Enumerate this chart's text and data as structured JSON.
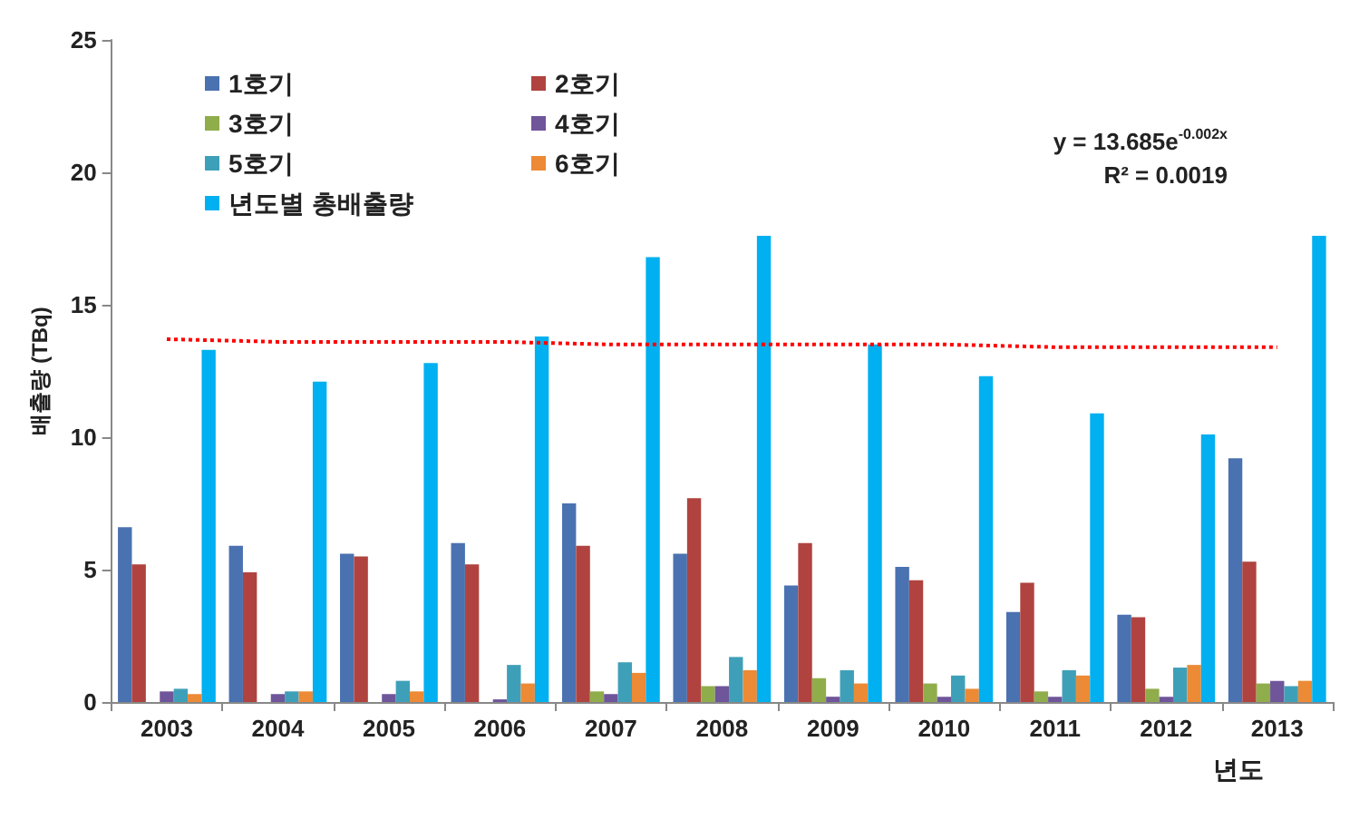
{
  "chart_data": {
    "type": "bar",
    "categories": [
      "2003",
      "2004",
      "2005",
      "2006",
      "2007",
      "2008",
      "2009",
      "2010",
      "2011",
      "2012",
      "2013"
    ],
    "xlabel": "년도",
    "ylabel": "배출량 (TBq)",
    "series": [
      {
        "name": "1호기",
        "color": "#4a72b0",
        "values": [
          6.6,
          5.9,
          5.6,
          6.0,
          7.5,
          5.6,
          4.4,
          5.1,
          3.4,
          3.3,
          9.2
        ]
      },
      {
        "name": "2호기",
        "color": "#b0433f",
        "values": [
          5.2,
          4.9,
          5.5,
          5.2,
          5.9,
          7.7,
          6.0,
          4.6,
          4.5,
          3.2,
          5.3
        ]
      },
      {
        "name": "3호기",
        "color": "#8fad4a",
        "values": [
          0,
          0,
          0,
          0,
          0.4,
          0.6,
          0.9,
          0.7,
          0.4,
          0.5,
          0.7
        ]
      },
      {
        "name": "4호기",
        "color": "#6f559a",
        "values": [
          0.4,
          0.3,
          0.3,
          0.1,
          0.3,
          0.6,
          0.2,
          0.2,
          0.2,
          0.2,
          0.8
        ]
      },
      {
        "name": "5호기",
        "color": "#3ea0b8",
        "values": [
          0.5,
          0.4,
          0.8,
          1.4,
          1.5,
          1.7,
          1.2,
          1.0,
          1.2,
          1.3,
          0.6
        ]
      },
      {
        "name": "6호기",
        "color": "#ec8a35",
        "values": [
          0.3,
          0.4,
          0.4,
          0.7,
          1.1,
          1.2,
          0.7,
          0.5,
          1.0,
          1.4,
          0.8
        ]
      },
      {
        "name": "년도별 총배출량",
        "color": "#00b0f0",
        "values": [
          13.3,
          12.1,
          12.8,
          13.8,
          16.8,
          17.6,
          13.5,
          12.3,
          10.9,
          10.1,
          17.6
        ]
      },
      {
        "type": "line",
        "color": "#ff0000",
        "line_style": "dotted",
        "marker": "none",
        "values": [
          13.7,
          13.6,
          13.6,
          13.6,
          13.5,
          13.5,
          13.5,
          13.5,
          13.4,
          13.4,
          13.4
        ]
      }
    ],
    "ylim": [
      0,
      25
    ],
    "yticks": [
      0,
      5,
      10,
      15,
      20,
      25
    ],
    "grid": false,
    "legend": "top left",
    "annotations": [
      "y = 13.685e$^{-0.002x}$",
      "R² = 0.0019"
    ]
  }
}
